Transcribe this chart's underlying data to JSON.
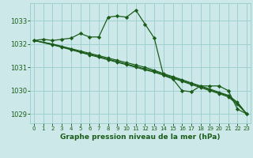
{
  "title": "Graphe pression niveau de la mer (hPa)",
  "bg_color": "#cce8e8",
  "grid_color": "#99cccc",
  "line_color": "#1a5c1a",
  "figsize": [
    3.2,
    2.0
  ],
  "dpi": 100,
  "xlim": [
    -0.4,
    23.4
  ],
  "ylim": [
    1028.6,
    1033.75
  ],
  "yticks": [
    1029,
    1030,
    1031,
    1032,
    1033
  ],
  "xticks": [
    0,
    1,
    2,
    3,
    4,
    5,
    6,
    7,
    8,
    9,
    10,
    11,
    12,
    13,
    14,
    15,
    16,
    17,
    18,
    19,
    20,
    21,
    22,
    23
  ],
  "line_main": {
    "x": [
      0,
      1,
      2,
      3,
      4,
      5,
      6,
      7,
      8,
      9,
      10,
      11,
      12,
      13,
      14,
      15,
      16,
      17,
      18,
      19,
      20,
      21,
      22,
      23
    ],
    "y": [
      1032.15,
      1032.2,
      1032.15,
      1032.2,
      1032.25,
      1032.45,
      1032.3,
      1032.3,
      1033.15,
      1033.2,
      1033.15,
      1033.45,
      1032.85,
      1032.25,
      1030.65,
      1030.5,
      1030.0,
      1029.95,
      1030.2,
      1030.2,
      1030.2,
      1030.0,
      1029.2,
      1029.0
    ]
  },
  "line_straight1": {
    "x": [
      0,
      2,
      3,
      4,
      5,
      6,
      7,
      8,
      9,
      10,
      11,
      12,
      13,
      14,
      15,
      16,
      17,
      18,
      19,
      20,
      21,
      22,
      23
    ],
    "y": [
      1032.15,
      1032.0,
      1031.9,
      1031.8,
      1031.7,
      1031.6,
      1031.5,
      1031.4,
      1031.3,
      1031.2,
      1031.1,
      1031.0,
      1030.87,
      1030.73,
      1030.6,
      1030.47,
      1030.33,
      1030.2,
      1030.07,
      1029.93,
      1029.8,
      1029.5,
      1029.0
    ]
  },
  "line_straight2": {
    "x": [
      0,
      2,
      3,
      4,
      5,
      6,
      7,
      8,
      9,
      10,
      11,
      12,
      13,
      14,
      15,
      16,
      17,
      18,
      19,
      20,
      21,
      22,
      23
    ],
    "y": [
      1032.15,
      1031.98,
      1031.88,
      1031.77,
      1031.67,
      1031.56,
      1031.46,
      1031.35,
      1031.25,
      1031.14,
      1031.04,
      1030.93,
      1030.83,
      1030.7,
      1030.57,
      1030.43,
      1030.3,
      1030.17,
      1030.03,
      1029.9,
      1029.77,
      1029.45,
      1029.0
    ]
  },
  "line_straight3": {
    "x": [
      0,
      2,
      3,
      4,
      5,
      6,
      7,
      8,
      9,
      10,
      11,
      12,
      13,
      14,
      15,
      16,
      17,
      18,
      19,
      20,
      21,
      22,
      23
    ],
    "y": [
      1032.15,
      1031.96,
      1031.86,
      1031.75,
      1031.64,
      1031.53,
      1031.43,
      1031.32,
      1031.21,
      1031.11,
      1031.0,
      1030.89,
      1030.79,
      1030.66,
      1030.53,
      1030.4,
      1030.26,
      1030.13,
      1030.0,
      1029.87,
      1029.73,
      1029.4,
      1029.0
    ]
  }
}
